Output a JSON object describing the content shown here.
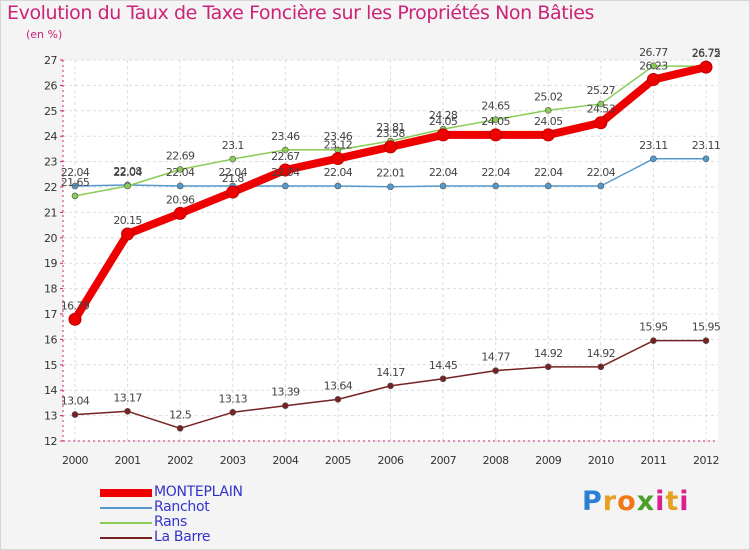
{
  "title": "Evolution du Taux de Taxe Foncière sur les Propriétés Non Bâties",
  "subtitle": "(en %)",
  "brand": {
    "letters": [
      "P",
      "r",
      "o",
      "x",
      "i",
      "t",
      "i"
    ],
    "colors": [
      "#2a7fd4",
      "#e8a020",
      "#f07818",
      "#4aa028",
      "#d82090",
      "#e8a020",
      "#d82090"
    ]
  },
  "chart_data": {
    "type": "line",
    "title": "Evolution du Taux de Taxe Foncière sur les Propriétés Non Bâties",
    "ylabel": "(en %)",
    "x": [
      "2000",
      "2001",
      "2002",
      "2003",
      "2004",
      "2005",
      "2006",
      "2007",
      "2008",
      "2009",
      "2010",
      "2011",
      "2012"
    ],
    "ylim": [
      12,
      27
    ],
    "yticks": [
      12,
      13,
      14,
      15,
      16,
      17,
      18,
      19,
      20,
      21,
      22,
      23,
      24,
      25,
      26,
      27
    ],
    "grid": true,
    "series": [
      {
        "name": "MONTEPLAIN",
        "color": "#ee0000",
        "values": [
          16.79,
          20.15,
          20.96,
          21.8,
          22.67,
          23.12,
          23.58,
          24.05,
          24.05,
          24.05,
          24.53,
          26.23,
          26.72
        ],
        "labels": [
          "16.79",
          "20.15",
          "20.96",
          "21.8",
          "22.67",
          "23.12",
          "23.58",
          "24.05",
          "24.05",
          "24.05",
          "24.53",
          "26.23",
          "26.72"
        ]
      },
      {
        "name": "Ranchot",
        "color": "#5599cc",
        "values": [
          22.04,
          22.08,
          22.04,
          22.04,
          22.04,
          22.04,
          22.01,
          22.04,
          22.04,
          22.04,
          22.04,
          23.11,
          23.11
        ],
        "labels": [
          "22.04",
          "22.08",
          "22.04",
          "22.04",
          "22.04",
          "22.04",
          "22.01",
          "22.04",
          "22.04",
          "22.04",
          "22.04",
          "23.11",
          "23.11"
        ]
      },
      {
        "name": "Rans",
        "color": "#88cc55",
        "values": [
          21.65,
          22.04,
          22.69,
          23.1,
          23.46,
          23.46,
          23.81,
          24.28,
          24.65,
          25.02,
          25.27,
          26.77,
          26.75
        ],
        "labels": [
          "21.65",
          "22.04",
          "22.69",
          "23.1",
          "23.46",
          "23.46",
          "23.81",
          "24.28",
          "24.65",
          "25.02",
          "25.27",
          "26.77",
          "26.75"
        ]
      },
      {
        "name": "La Barre",
        "color": "#772222",
        "values": [
          13.04,
          13.17,
          12.5,
          13.13,
          13.39,
          13.64,
          14.17,
          14.45,
          14.77,
          14.92,
          14.92,
          15.95,
          15.95
        ],
        "labels": [
          "13.04",
          "13.17",
          "12.5",
          "13.13",
          "13.39",
          "13.64",
          "14.17",
          "14.45",
          "14.77",
          "14.92",
          "14.92",
          "15.95",
          "15.95"
        ]
      }
    ]
  }
}
